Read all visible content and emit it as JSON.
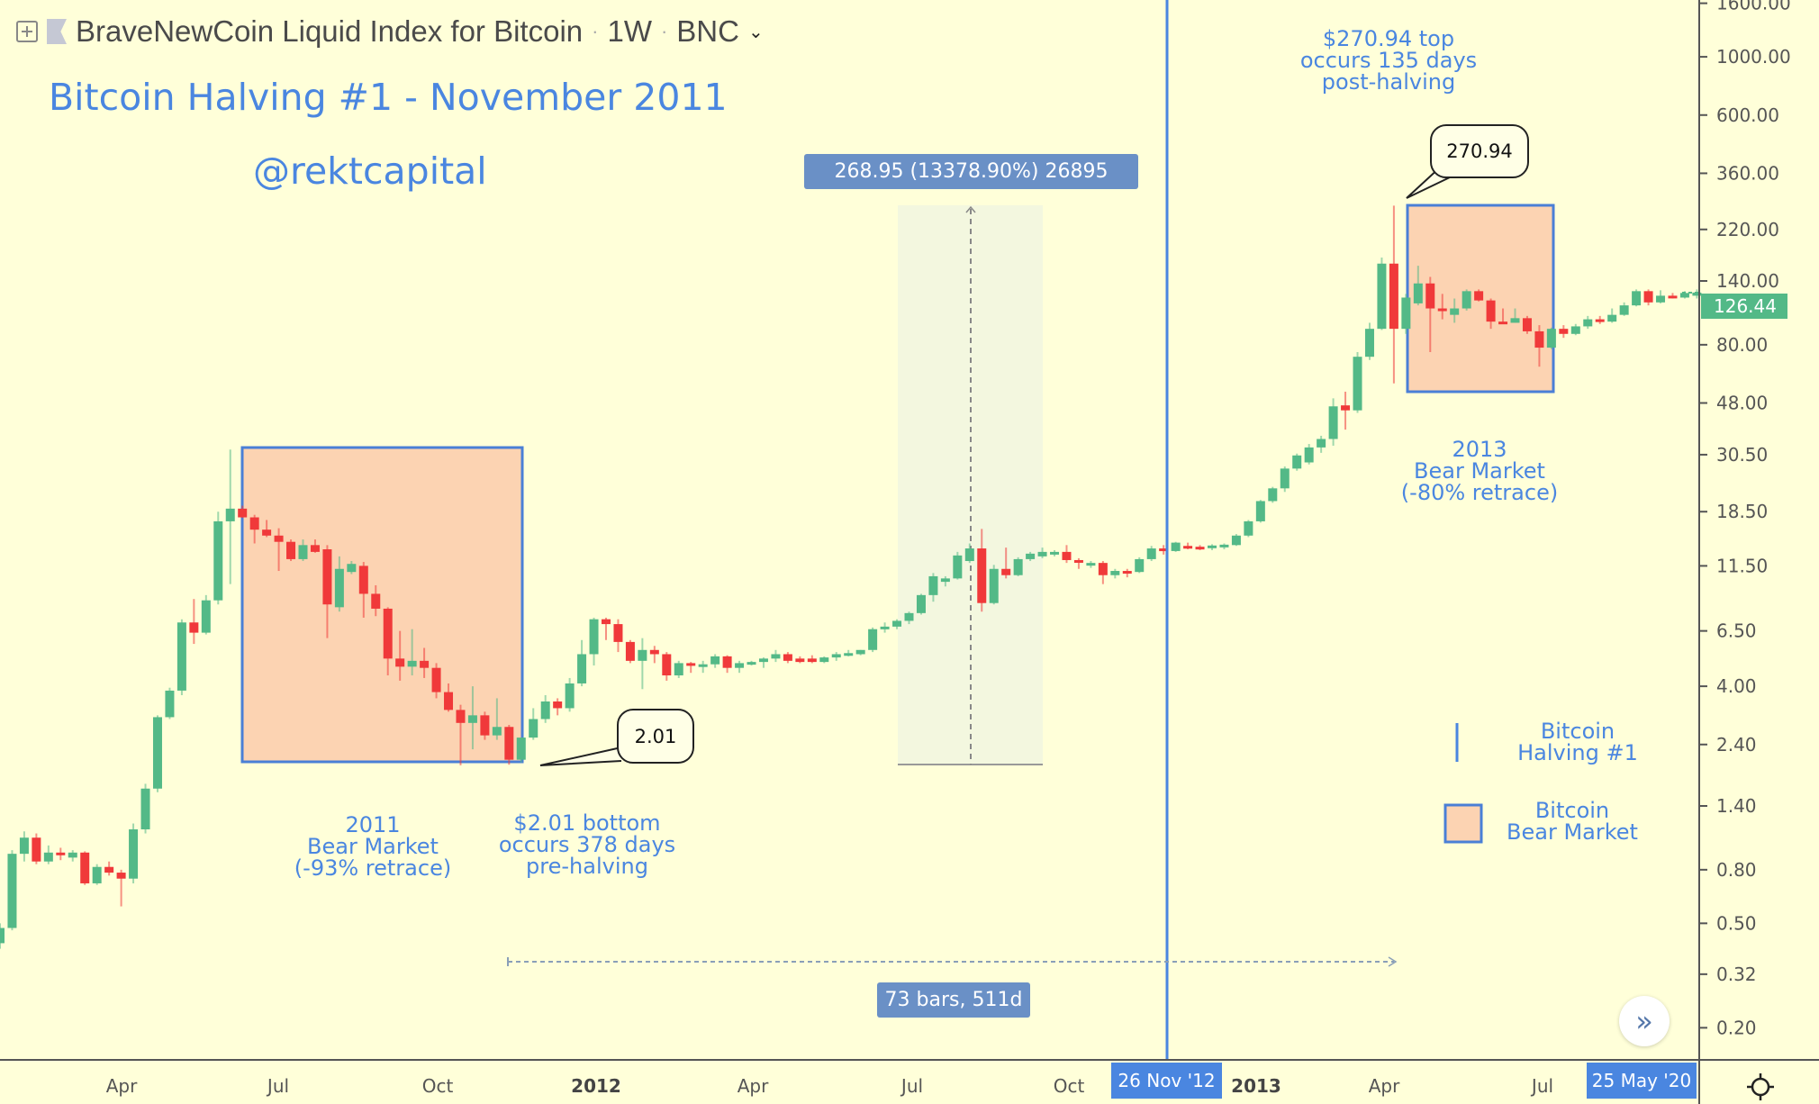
{
  "header": {
    "symbol_title": "BraveNewCoin Liquid Index for Bitcoin",
    "interval": "1W",
    "exchange": "BNC",
    "separator": "·"
  },
  "annotations": {
    "headline": "Bitcoin Halving #1 - November 2011",
    "handle": "@rektcapital",
    "measure_label": "268.95 (13378.90%) 26895",
    "bear_2011": [
      "2011",
      "Bear Market",
      "(-93% retrace)"
    ],
    "bottom_note": [
      "$2.01 bottom",
      "occurs 378 days",
      "pre-halving"
    ],
    "top_note": [
      "$270.94 top",
      "occurs 135 days",
      "post-halving"
    ],
    "bear_2013": [
      "2013",
      "Bear Market",
      "(-80% retrace)"
    ],
    "callout_low": "2.01",
    "callout_high": "270.94",
    "range_label": "73 bars, 511d",
    "halving_date_tag": "26 Nov '12",
    "cursor_date_tag": "25 May '20"
  },
  "legend": {
    "halving": [
      "Bitcoin",
      "Halving #1"
    ],
    "bear": [
      "Bitcoin",
      "Bear Market"
    ]
  },
  "colors": {
    "background": "#ffffd9",
    "up": "#53b987",
    "down": "#f0393a",
    "annotation_blue": "#4a86e0",
    "bear_box_fill": "#fcd3b2",
    "measure_fill": "#eef6dd"
  },
  "icons": [
    "add-symbol-icon",
    "flag-icon",
    "chevron-down-icon",
    "double-chevron-right-icon",
    "gear-icon"
  ],
  "chart_data": {
    "type": "candlestick",
    "title": "BraveNewCoin Liquid Index for Bitcoin · 1W · BNC",
    "y_scale": "log",
    "ylim": [
      0.16,
      1750
    ],
    "last_price": "126.44",
    "y_ticks": [
      "1600.00",
      "1000.00",
      "600.00",
      "360.00",
      "220.00",
      "140.00",
      "80.00",
      "48.00",
      "30.50",
      "18.50",
      "11.50",
      "6.50",
      "4.00",
      "2.40",
      "1.40",
      "0.80",
      "0.50",
      "0.32",
      "0.20"
    ],
    "x_ticks": [
      {
        "label": "Apr",
        "bold": false
      },
      {
        "label": "Jul",
        "bold": false
      },
      {
        "label": "Oct",
        "bold": false
      },
      {
        "label": "2012",
        "bold": true
      },
      {
        "label": "Apr",
        "bold": false
      },
      {
        "label": "Jul",
        "bold": false
      },
      {
        "label": "Oct",
        "bold": false
      },
      {
        "label": "2013",
        "bold": true
      },
      {
        "label": "Apr",
        "bold": false
      },
      {
        "label": "Jul",
        "bold": false
      }
    ],
    "ohlc_fields": [
      "open",
      "high",
      "low",
      "close"
    ],
    "candles": [
      [
        0.42,
        0.5,
        0.4,
        0.48
      ],
      [
        0.48,
        0.95,
        0.47,
        0.92
      ],
      [
        0.92,
        1.12,
        0.86,
        1.06
      ],
      [
        1.06,
        1.1,
        0.84,
        0.86
      ],
      [
        0.86,
        0.99,
        0.84,
        0.93
      ],
      [
        0.93,
        0.97,
        0.87,
        0.91
      ],
      [
        0.89,
        0.95,
        0.86,
        0.93
      ],
      [
        0.93,
        0.94,
        0.7,
        0.71
      ],
      [
        0.71,
        0.84,
        0.7,
        0.82
      ],
      [
        0.82,
        0.86,
        0.76,
        0.78
      ],
      [
        0.78,
        0.8,
        0.58,
        0.74
      ],
      [
        0.74,
        1.2,
        0.71,
        1.14
      ],
      [
        1.14,
        1.7,
        1.1,
        1.63
      ],
      [
        1.63,
        3.1,
        1.58,
        3.05
      ],
      [
        3.05,
        3.95,
        3.0,
        3.85
      ],
      [
        3.85,
        7.2,
        3.7,
        7.0
      ],
      [
        7.0,
        8.6,
        5.8,
        6.4
      ],
      [
        6.4,
        8.9,
        6.3,
        8.5
      ],
      [
        8.5,
        18.5,
        8.2,
        17.0
      ],
      [
        17.0,
        31.9,
        9.8,
        19.0
      ],
      [
        19.0,
        19.5,
        17.5,
        17.6
      ],
      [
        17.6,
        18.0,
        14.0,
        15.8
      ],
      [
        15.8,
        17.2,
        14.8,
        15.0
      ],
      [
        15.0,
        16.0,
        11.0,
        14.2
      ],
      [
        14.2,
        14.5,
        12.0,
        12.2
      ],
      [
        12.2,
        14.5,
        12.0,
        13.8
      ],
      [
        13.8,
        14.5,
        12.9,
        13.0
      ],
      [
        13.3,
        13.8,
        6.1,
        8.2
      ],
      [
        8.0,
        12.5,
        7.7,
        11.2
      ],
      [
        10.9,
        12.0,
        10.7,
        11.7
      ],
      [
        11.5,
        11.9,
        7.3,
        9.0
      ],
      [
        9.0,
        9.7,
        7.4,
        7.9
      ],
      [
        7.9,
        8.0,
        4.4,
        5.1
      ],
      [
        5.1,
        6.5,
        4.2,
        4.75
      ],
      [
        4.75,
        6.6,
        4.4,
        5.0
      ],
      [
        5.0,
        5.6,
        4.3,
        4.7
      ],
      [
        4.7,
        4.9,
        3.6,
        3.8
      ],
      [
        3.8,
        4.1,
        3.2,
        3.25
      ],
      [
        3.25,
        3.4,
        2.0,
        2.9
      ],
      [
        2.9,
        4.0,
        2.3,
        3.1
      ],
      [
        3.1,
        3.2,
        2.5,
        2.6
      ],
      [
        2.6,
        3.6,
        2.5,
        2.8
      ],
      [
        2.8,
        2.85,
        2.01,
        2.1
      ],
      [
        2.1,
        2.55,
        2.05,
        2.55
      ],
      [
        2.55,
        3.3,
        2.5,
        3.0
      ],
      [
        3.0,
        3.7,
        2.9,
        3.5
      ],
      [
        3.5,
        3.6,
        3.1,
        3.3
      ],
      [
        3.3,
        4.3,
        3.2,
        4.1
      ],
      [
        4.1,
        6.0,
        4.0,
        5.3
      ],
      [
        5.3,
        7.3,
        4.8,
        7.2
      ],
      [
        7.2,
        7.3,
        6.0,
        6.9
      ],
      [
        6.9,
        7.2,
        5.4,
        5.9
      ],
      [
        5.9,
        6.0,
        4.9,
        5.0
      ],
      [
        5.0,
        6.1,
        3.9,
        5.5
      ],
      [
        5.5,
        5.7,
        4.9,
        5.3
      ],
      [
        5.3,
        5.4,
        4.2,
        4.4
      ],
      [
        4.4,
        5.0,
        4.3,
        4.9
      ],
      [
        4.9,
        4.95,
        4.5,
        4.8
      ],
      [
        4.8,
        5.0,
        4.5,
        4.85
      ],
      [
        4.85,
        5.3,
        4.7,
        5.2
      ],
      [
        5.2,
        5.25,
        4.5,
        4.7
      ],
      [
        4.7,
        5.0,
        4.5,
        4.9
      ],
      [
        4.9,
        5.0,
        4.8,
        4.95
      ],
      [
        4.95,
        5.15,
        4.7,
        5.1
      ],
      [
        5.1,
        5.5,
        4.95,
        5.3
      ],
      [
        5.3,
        5.4,
        4.9,
        5.0
      ],
      [
        5.1,
        5.2,
        4.9,
        4.95
      ],
      [
        5.1,
        5.25,
        4.9,
        4.95
      ],
      [
        4.95,
        5.2,
        4.9,
        5.15
      ],
      [
        5.15,
        5.4,
        5.0,
        5.3
      ],
      [
        5.3,
        5.5,
        5.2,
        5.35
      ],
      [
        5.3,
        5.5,
        5.25,
        5.5
      ],
      [
        5.5,
        6.7,
        5.4,
        6.6
      ],
      [
        6.6,
        7.0,
        6.4,
        6.75
      ],
      [
        6.75,
        7.2,
        6.6,
        7.1
      ],
      [
        7.1,
        7.7,
        6.9,
        7.6
      ],
      [
        7.6,
        9.0,
        7.5,
        8.9
      ],
      [
        8.9,
        10.8,
        8.4,
        10.5
      ],
      [
        10.0,
        10.5,
        9.6,
        10.3
      ],
      [
        10.3,
        13.0,
        10.2,
        12.6
      ],
      [
        12.0,
        14.0,
        11.8,
        13.4
      ],
      [
        13.4,
        15.9,
        7.7,
        8.3
      ],
      [
        8.3,
        11.6,
        8.2,
        11.2
      ],
      [
        11.2,
        13.5,
        10.3,
        10.6
      ],
      [
        10.6,
        12.4,
        10.5,
        12.2
      ],
      [
        12.2,
        13.0,
        12.0,
        12.8
      ],
      [
        12.5,
        13.5,
        12.3,
        13.0
      ],
      [
        12.7,
        13.2,
        12.5,
        13.0
      ],
      [
        13.0,
        13.8,
        11.8,
        12.1
      ],
      [
        12.1,
        12.3,
        11.2,
        11.9
      ],
      [
        11.6,
        12.0,
        11.3,
        11.8
      ],
      [
        11.8,
        12.0,
        9.8,
        10.6
      ],
      [
        10.6,
        11.2,
        10.3,
        11.0
      ],
      [
        11.0,
        11.2,
        10.4,
        10.9
      ],
      [
        10.9,
        12.4,
        10.8,
        12.2
      ],
      [
        12.2,
        13.7,
        12.0,
        13.4
      ],
      [
        13.4,
        13.8,
        12.7,
        13.1
      ],
      [
        13.1,
        14.2,
        13.0,
        14.1
      ],
      [
        13.7,
        14.1,
        13.3,
        13.5
      ],
      [
        13.6,
        13.8,
        13.2,
        13.45
      ],
      [
        13.45,
        13.9,
        13.2,
        13.75
      ],
      [
        13.75,
        14.0,
        13.3,
        13.85
      ],
      [
        13.8,
        15.2,
        13.7,
        15.0
      ],
      [
        15.0,
        17.2,
        14.8,
        17.0
      ],
      [
        17.0,
        20.5,
        16.8,
        20.3
      ],
      [
        20.3,
        23.0,
        20.0,
        22.7
      ],
      [
        22.7,
        27.5,
        22.0,
        27.0
      ],
      [
        27.0,
        30.8,
        26.5,
        30.3
      ],
      [
        28.5,
        33.5,
        28.0,
        32.5
      ],
      [
        32.5,
        36.0,
        31.0,
        35.0
      ],
      [
        35.0,
        50.0,
        33.0,
        46.6
      ],
      [
        47.0,
        53.0,
        38.0,
        45.0
      ],
      [
        45.0,
        75.0,
        44.0,
        72.0
      ],
      [
        72.0,
        97.0,
        70.0,
        92.0
      ],
      [
        92.0,
        172.0,
        91.0,
        163.0
      ],
      [
        163.0,
        270.94,
        57.0,
        92.0
      ],
      [
        92.0,
        125.0,
        88.0,
        121.0
      ],
      [
        115.0,
        160.0,
        113.0,
        137.0
      ],
      [
        137.0,
        145.0,
        75.0,
        110.0
      ],
      [
        110.0,
        125.0,
        100.0,
        109.0
      ],
      [
        104.0,
        120.0,
        97.0,
        110.0
      ],
      [
        110.0,
        130.0,
        108.0,
        128.0
      ],
      [
        128.0,
        130.0,
        117.0,
        118.0
      ],
      [
        118.0,
        120.0,
        92.0,
        98.0
      ],
      [
        98.0,
        110.0,
        96.0,
        97.0
      ],
      [
        97.0,
        110.0,
        97.0,
        101.0
      ],
      [
        101.0,
        103.0,
        88.0,
        90.0
      ],
      [
        90.0,
        95.0,
        66.0,
        78.0
      ],
      [
        78.0,
        93.0,
        77.0,
        92.0
      ],
      [
        92.0,
        95.0,
        85.0,
        88.0
      ],
      [
        88.0,
        96.0,
        87.0,
        94.0
      ],
      [
        94.0,
        103.0,
        92.0,
        100.0
      ],
      [
        100.0,
        103.0,
        96.0,
        98.0
      ],
      [
        98.0,
        110.0,
        97.0,
        104.0
      ],
      [
        104.0,
        116.0,
        103.0,
        113.0
      ],
      [
        113.0,
        130.0,
        112.0,
        128.0
      ],
      [
        128.0,
        130.0,
        113.0,
        116.0
      ],
      [
        116.0,
        129.0,
        115.0,
        123.0
      ],
      [
        123.0,
        126.0,
        120.0,
        121.0
      ],
      [
        121.0,
        128.0,
        120.0,
        126.0
      ],
      [
        123.0,
        130.0,
        120.0,
        126.44
      ]
    ]
  }
}
